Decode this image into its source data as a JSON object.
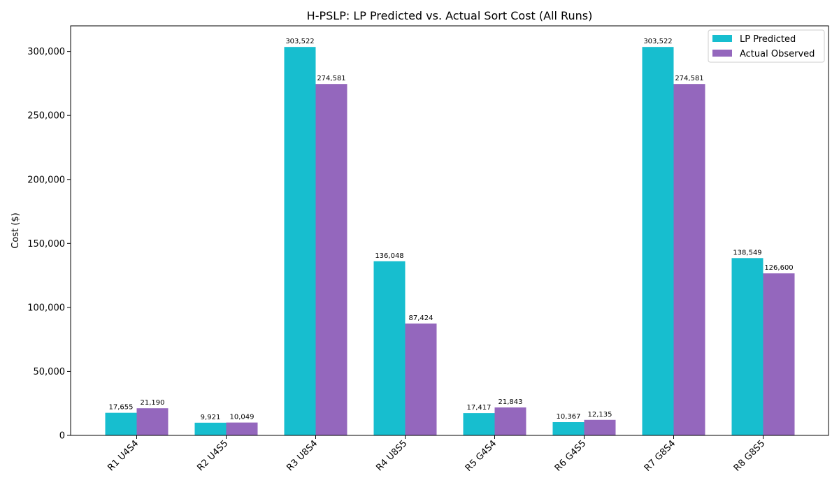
{
  "chart_data": {
    "type": "bar",
    "title": "H-PSLP: LP Predicted vs. Actual Sort Cost (All Runs)",
    "xlabel": "",
    "ylabel": "Cost ($)",
    "ylim": [
      0,
      320000
    ],
    "yticks": [
      0,
      50000,
      100000,
      150000,
      200000,
      250000,
      300000
    ],
    "ytick_labels": [
      "0",
      "50,000",
      "100,000",
      "150,000",
      "200,000",
      "250,000",
      "300,000"
    ],
    "categories": [
      "R1 U4S4",
      "R2 U4S5",
      "R3 U8S4",
      "R4 U8S5",
      "R5 G4S4",
      "R6 G4S5",
      "R7 G8S4",
      "R8 G8S5"
    ],
    "series": [
      {
        "name": "LP Predicted",
        "color": "#17becf",
        "values": [
          17655,
          9921,
          303522,
          136048,
          17417,
          10367,
          303522,
          138549
        ],
        "labels": [
          "17,655",
          "9,921",
          "303,522",
          "136,048",
          "17,417",
          "10,367",
          "303,522",
          "138,549"
        ]
      },
      {
        "name": "Actual Observed",
        "color": "#9467bd",
        "values": [
          21190,
          10049,
          274581,
          87424,
          21843,
          12135,
          274581,
          126600
        ],
        "labels": [
          "21,190",
          "10,049",
          "274,581",
          "87,424",
          "21,843",
          "12,135",
          "274,581",
          "126,600"
        ]
      }
    ],
    "legend_position": "top-right",
    "grid": false
  }
}
